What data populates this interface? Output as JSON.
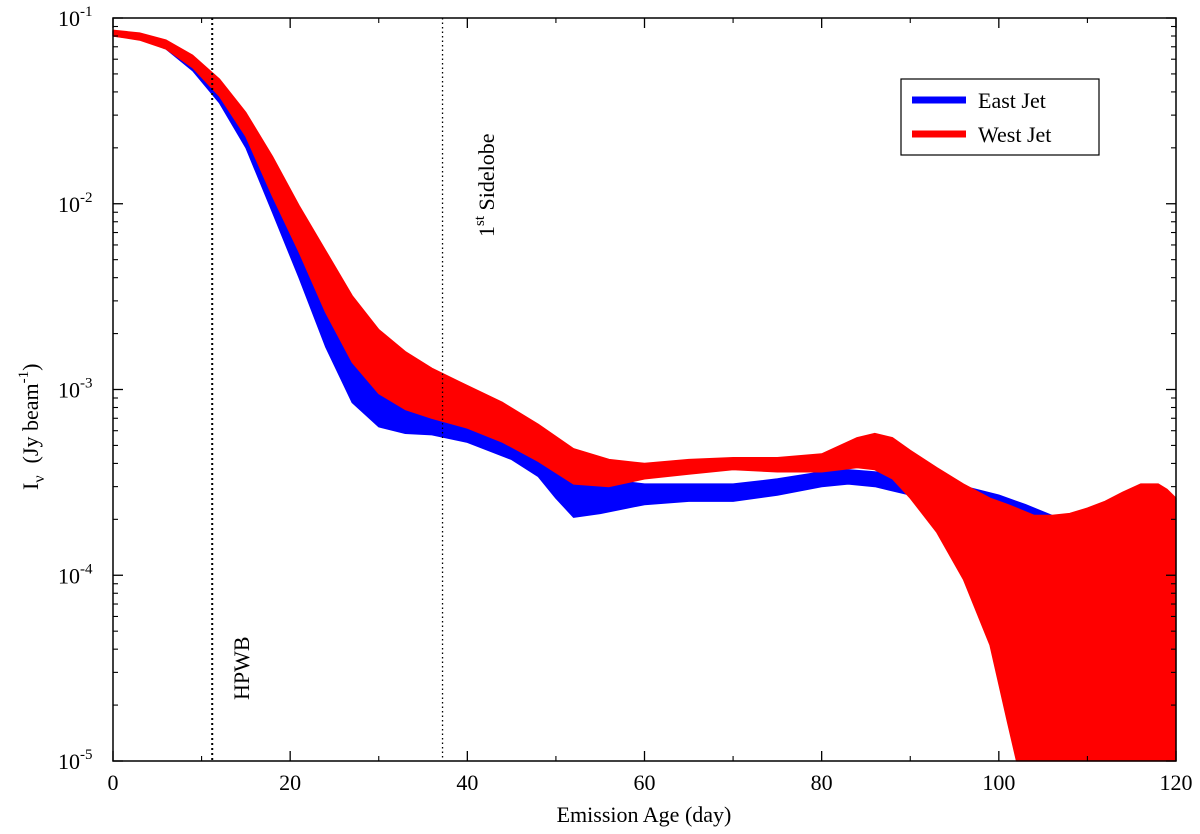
{
  "chart_data": {
    "type": "area",
    "title": "",
    "xlabel": "Emission Age (day)",
    "ylabel": {
      "symbol": "I",
      "subscript": "ν",
      "units_open": "(Jy beam",
      "units_sup": "-1",
      "units_close": ")"
    },
    "xlim": [
      0,
      120
    ],
    "ylim": [
      1e-05,
      0.1
    ],
    "yscale": "log",
    "x_ticks": [
      "0",
      "20",
      "40",
      "60",
      "80",
      "100",
      "120"
    ],
    "y_ticks": [
      {
        "base": "10",
        "exp": "-5",
        "value": 1e-05
      },
      {
        "base": "10",
        "exp": "-4",
        "value": 0.0001
      },
      {
        "base": "10",
        "exp": "-3",
        "value": 0.001
      },
      {
        "base": "10",
        "exp": "-2",
        "value": 0.01
      },
      {
        "base": "10",
        "exp": "-1",
        "value": 0.1
      }
    ],
    "grid": false,
    "legend_position": "top-right",
    "vlines": [
      {
        "x": 11.2,
        "label": "HPWB",
        "style": "dotted"
      },
      {
        "x": 37.2,
        "label_pre": "1",
        "label_sup": "st",
        "label_post": " Sidelobe",
        "style": "dotted"
      }
    ],
    "series": [
      {
        "name": "East Jet",
        "color": "#0000ff",
        "x": [
          0,
          3,
          6,
          9,
          12,
          15,
          18,
          21,
          24,
          27,
          30,
          33,
          36,
          40,
          45,
          48,
          50,
          52,
          55,
          60,
          65,
          70,
          75,
          80,
          83,
          86,
          90,
          95,
          100,
          103,
          106
        ],
        "upper": [
          0.085,
          0.082,
          0.074,
          0.06,
          0.043,
          0.027,
          0.014,
          0.0075,
          0.0036,
          0.0019,
          0.0013,
          0.00105,
          0.00095,
          0.00083,
          0.00063,
          0.00052,
          0.00044,
          0.00037,
          0.00033,
          0.00031,
          0.00031,
          0.00031,
          0.00033,
          0.00036,
          0.00037,
          0.00036,
          0.00034,
          0.00031,
          0.00027,
          0.00024,
          0.00021
        ],
        "lower": [
          0.08,
          0.077,
          0.068,
          0.052,
          0.035,
          0.02,
          0.009,
          0.004,
          0.0017,
          0.00085,
          0.00063,
          0.00058,
          0.00057,
          0.00052,
          0.00042,
          0.00034,
          0.00026,
          0.000205,
          0.000215,
          0.00024,
          0.00025,
          0.00025,
          0.00027,
          0.0003,
          0.00031,
          0.0003,
          0.00027,
          0.00024,
          0.000215,
          0.000205,
          0.0002
        ]
      },
      {
        "name": "West Jet",
        "color": "#ff0000",
        "x": [
          0,
          3,
          6,
          9,
          12,
          15,
          18,
          21,
          24,
          27,
          30,
          33,
          36,
          40,
          44,
          48,
          52,
          56,
          60,
          65,
          70,
          75,
          80,
          84,
          86,
          88,
          90,
          93,
          96,
          99,
          101,
          102,
          104,
          106,
          108,
          110,
          112,
          114,
          116,
          118,
          119,
          120
        ],
        "upper": [
          0.086,
          0.083,
          0.076,
          0.063,
          0.047,
          0.031,
          0.018,
          0.0098,
          0.0056,
          0.0032,
          0.0021,
          0.0016,
          0.0013,
          0.00105,
          0.00085,
          0.00065,
          0.00048,
          0.00042,
          0.0004,
          0.00042,
          0.00043,
          0.00043,
          0.00045,
          0.00055,
          0.00058,
          0.00055,
          0.00047,
          0.00038,
          0.00031,
          0.00026,
          0.00024,
          0.00023,
          0.00021,
          0.00021,
          0.000215,
          0.00023,
          0.00025,
          0.00028,
          0.00031,
          0.00031,
          0.00029,
          0.00026
        ],
        "lower": [
          0.08,
          0.076,
          0.068,
          0.054,
          0.038,
          0.023,
          0.011,
          0.0055,
          0.0026,
          0.0014,
          0.00095,
          0.00078,
          0.0007,
          0.00062,
          0.00052,
          0.00041,
          0.00031,
          0.0003,
          0.00033,
          0.00035,
          0.00037,
          0.00036,
          0.00036,
          0.00038,
          0.00037,
          0.00033,
          0.00026,
          0.00017,
          9.5e-05,
          4.2e-05,
          1.6e-05,
          1e-05,
          1e-05,
          1e-05,
          1e-05,
          1e-05,
          1e-05,
          1e-05,
          1e-05,
          1e-05,
          1e-05,
          1e-05
        ]
      }
    ]
  }
}
